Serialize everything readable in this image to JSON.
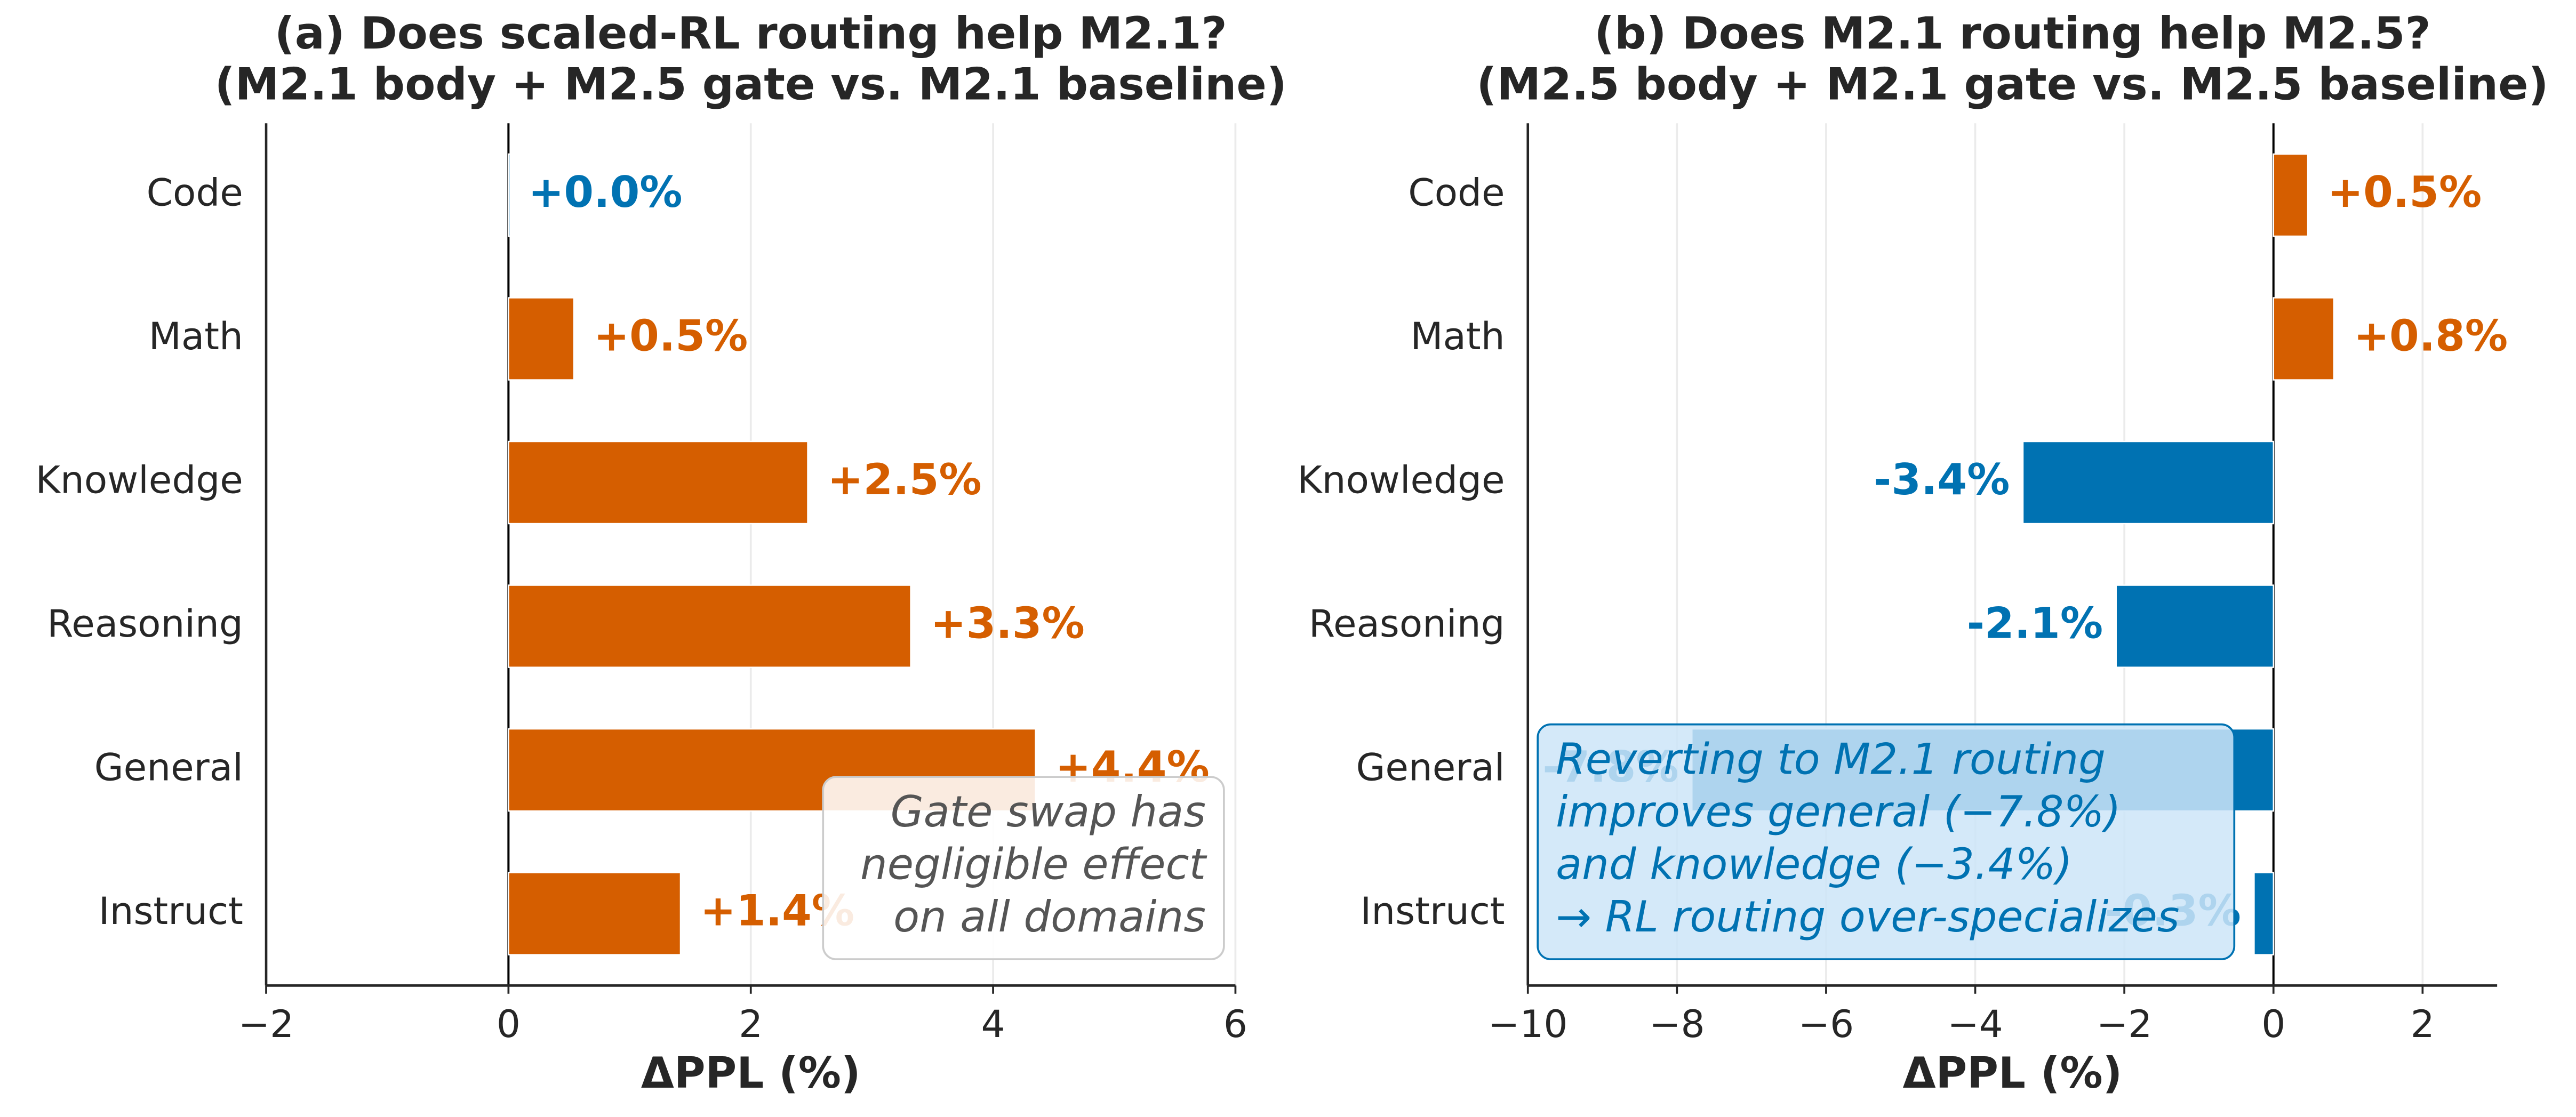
{
  "chart_data": [
    {
      "type": "barh",
      "title": [
        "(a)  Does scaled-RL routing help M2.1?",
        "(M2.1 body + M2.5 gate vs. M2.1 baseline)"
      ],
      "xlabel": "ΔPPL (%)",
      "categories": [
        "Code",
        "Math",
        "Knowledge",
        "Reasoning",
        "General",
        "Instruct"
      ],
      "values": [
        0,
        0.54,
        2.47,
        3.32,
        4.35,
        1.42
      ],
      "value_labels": [
        "+0.0%",
        "+0.5%",
        "+2.5%",
        "+3.3%",
        "+4.4%",
        "+1.4%"
      ],
      "positive_color": "#d55e00",
      "negative_color": "#0072b2",
      "xlim": [
        -2,
        6
      ],
      "xticks": [
        {
          "value": -2,
          "label": "−2"
        },
        0,
        2,
        4,
        6
      ],
      "grid": true,
      "annotation": [
        "Gate swap has",
        "negligible effect",
        "on all domains"
      ],
      "annotation_corner": "lower right"
    },
    {
      "type": "barh",
      "title": [
        "(b)  Does M2.1 routing help M2.5?",
        "(M2.5 body + M2.1 gate vs. M2.5 baseline)"
      ],
      "xlabel": "ΔPPL (%)",
      "categories": [
        "Code",
        "Math",
        "Knowledge",
        "Reasoning",
        "General",
        "Instruct"
      ],
      "values": [
        0.46,
        0.81,
        -3.36,
        -2.11,
        -7.8,
        -0.26
      ],
      "value_labels": [
        "+0.5%",
        "+0.8%",
        "-3.4%",
        "-2.1%",
        "-7.8%",
        "-0.3%"
      ],
      "positive_color": "#d55e00",
      "negative_color": "#0072b2",
      "xlim": [
        -10,
        3
      ],
      "xticks": [
        {
          "value": -10,
          "label": "−10"
        },
        {
          "value": -8,
          "label": "−8"
        },
        {
          "value": -6,
          "label": "−6"
        },
        {
          "value": -4,
          "label": "−4"
        },
        {
          "value": -2,
          "label": "−2"
        },
        0,
        2
      ],
      "grid": true,
      "annotation": [
        "Reverting to M2.1 routing",
        "improves general (−7.8%)",
        "and knowledge (−3.4%)",
        "→ RL routing over-specializes"
      ],
      "annotation_corner": "lower left"
    }
  ]
}
